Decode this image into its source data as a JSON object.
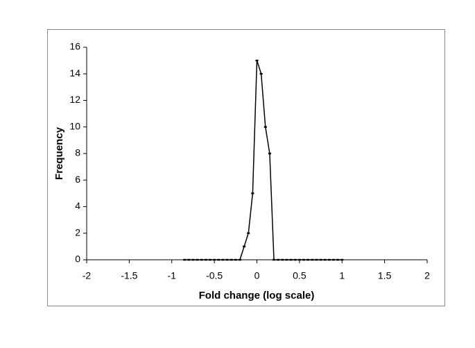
{
  "chart_data": {
    "type": "line",
    "x_label": "Fold change (log scale)",
    "y_label": "Frequency",
    "x": [
      -0.85,
      -0.8,
      -0.75,
      -0.7,
      -0.65,
      -0.6,
      -0.55,
      -0.5,
      -0.45,
      -0.4,
      -0.35,
      -0.3,
      -0.25,
      -0.2,
      -0.15,
      -0.1,
      -0.05,
      0,
      0.05,
      0.1,
      0.15,
      0.2,
      0.25,
      0.3,
      0.35,
      0.4,
      0.45,
      0.5,
      0.55,
      0.6,
      0.65,
      0.7,
      0.75,
      0.8,
      0.85,
      0.9,
      0.95,
      1
    ],
    "values": [
      0,
      0,
      0,
      0,
      0,
      0,
      0,
      0,
      0,
      0,
      0,
      0,
      0,
      0,
      1,
      2,
      5,
      15,
      14,
      10,
      8,
      0,
      0,
      0,
      0,
      0,
      0,
      0,
      0,
      0,
      0,
      0,
      0,
      0,
      0,
      0,
      0,
      0
    ],
    "color": "#000000",
    "xlim": [
      -2,
      2
    ],
    "xticks": [
      -2,
      -1.5,
      -1,
      -0.5,
      0,
      0.5,
      1,
      1.5,
      2
    ],
    "ylim": [
      0,
      16
    ],
    "yticks": [
      0,
      2,
      4,
      6,
      8,
      10,
      12,
      14,
      16
    ],
    "grid": false
  }
}
